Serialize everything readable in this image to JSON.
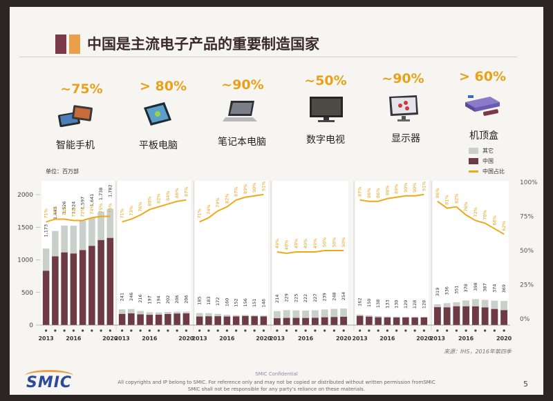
{
  "title": "中国是主流电子产品的重要制造国家",
  "units_label": "单位：百万部",
  "legend": {
    "other": "其它",
    "china": "中国",
    "china_share": "中国占比"
  },
  "source": "来源：IHS，2016年第四季",
  "footer": {
    "confidential": "SMIC Confidential",
    "line1": "All copyrights and IP belong to SMIC. For reference only and may not be copied or distributed without written permission fromSMIC",
    "line2": "SMIC shall not be responsible for any party's reliance on these materials."
  },
  "logo": "SMIC",
  "page_number": "5",
  "colors": {
    "china": "#6e3a44",
    "other": "#c9cfcb",
    "share_line": "#f0a818",
    "pct_text": "#e8a21a"
  },
  "products": [
    {
      "name": "智能手机",
      "share": "~75%",
      "icon": "smartphone-icon"
    },
    {
      "name": "平板电脑",
      "share": "> 80%",
      "icon": "tablet-icon"
    },
    {
      "name": "笔记本电脑",
      "share": "~90%",
      "icon": "laptop-icon"
    },
    {
      "name": "数字电视",
      "share": "~50%",
      "icon": "tv-icon"
    },
    {
      "name": "显示器",
      "share": "~90%",
      "icon": "monitor-icon"
    },
    {
      "name": "机顶盒",
      "share": "> 60%",
      "icon": "settop-box-icon"
    }
  ],
  "chart_data": {
    "type": "bar",
    "x": [
      "2013",
      "2014",
      "2015",
      "2016",
      "2017",
      "2018",
      "2019",
      "2020"
    ],
    "x_tick_labels": [
      "2013",
      "2016",
      "2020"
    ],
    "left_axis": {
      "ticks": [
        "0",
        "500",
        "1000",
        "1500",
        "2000"
      ],
      "ylim": [
        0,
        2000
      ]
    },
    "right_axis": {
      "ticks": [
        "0%",
        "25%",
        "50%",
        "75%",
        "100%"
      ],
      "ylim": [
        0,
        100
      ]
    },
    "panels": [
      {
        "name": "智能手机",
        "total_labels": [
          "1,173",
          "1,443",
          "1,526",
          "1,524",
          "1,597",
          "1,641",
          "1,738",
          "1,782"
        ],
        "totals": [
          1173,
          1443,
          1526,
          1524,
          1597,
          1641,
          1738,
          1782
        ],
        "share_labels": [
          "71%",
          "73%",
          "73%",
          "72%",
          "72%",
          "74%",
          "75%",
          "75%"
        ],
        "share": [
          71,
          73,
          73,
          72,
          72,
          74,
          75,
          75
        ]
      },
      {
        "name": "平板电脑",
        "total_labels": [
          "241",
          "246",
          "216",
          "197",
          "194",
          "202",
          "206",
          "206"
        ],
        "totals": [
          241,
          246,
          216,
          197,
          194,
          202,
          206,
          206
        ],
        "share_labels": [
          "71%",
          "73%",
          "76%",
          "80%",
          "82%",
          "84%",
          "86%",
          "87%"
        ],
        "share": [
          71,
          73,
          76,
          80,
          82,
          84,
          86,
          87
        ]
      },
      {
        "name": "笔记本电脑",
        "total_labels": [
          "185",
          "183",
          "172",
          "160",
          "152",
          "156",
          "151",
          "146"
        ],
        "totals": [
          185,
          183,
          172,
          160,
          152,
          156,
          151,
          146
        ],
        "share_labels": [
          "71%",
          "74%",
          "79%",
          "82%",
          "87%",
          "89%",
          "90%",
          "91%"
        ],
        "share": [
          71,
          74,
          79,
          82,
          87,
          89,
          90,
          91
        ]
      },
      {
        "name": "数字电视",
        "total_labels": [
          "214",
          "229",
          "225",
          "222",
          "227",
          "239",
          "248",
          "254"
        ],
        "totals": [
          214,
          229,
          225,
          222,
          227,
          239,
          248,
          254
        ],
        "share_labels": [
          "49%",
          "48%",
          "49%",
          "49%",
          "49%",
          "50%",
          "50%",
          "50%"
        ],
        "share": [
          49,
          48,
          49,
          49,
          49,
          50,
          50,
          50
        ]
      },
      {
        "name": "显示器",
        "total_labels": [
          "162",
          "150",
          "138",
          "133",
          "130",
          "129",
          "128",
          "128"
        ],
        "totals": [
          162,
          150,
          138,
          133,
          130,
          129,
          128,
          128
        ],
        "share_labels": [
          "87%",
          "86%",
          "86%",
          "88%",
          "89%",
          "90%",
          "90%",
          "91%"
        ],
        "share": [
          87,
          86,
          86,
          88,
          89,
          90,
          90,
          91
        ]
      },
      {
        "name": "机顶盒",
        "total_labels": [
          "319",
          "336",
          "351",
          "378",
          "398",
          "387",
          "374",
          "369"
        ],
        "totals": [
          319,
          336,
          351,
          378,
          398,
          387,
          374,
          369
        ],
        "share_labels": [
          "86%",
          "81%",
          "82%",
          "76%",
          "72%",
          "70%",
          "66%",
          "62%"
        ],
        "share": [
          86,
          81,
          82,
          76,
          72,
          70,
          66,
          62
        ]
      }
    ]
  }
}
